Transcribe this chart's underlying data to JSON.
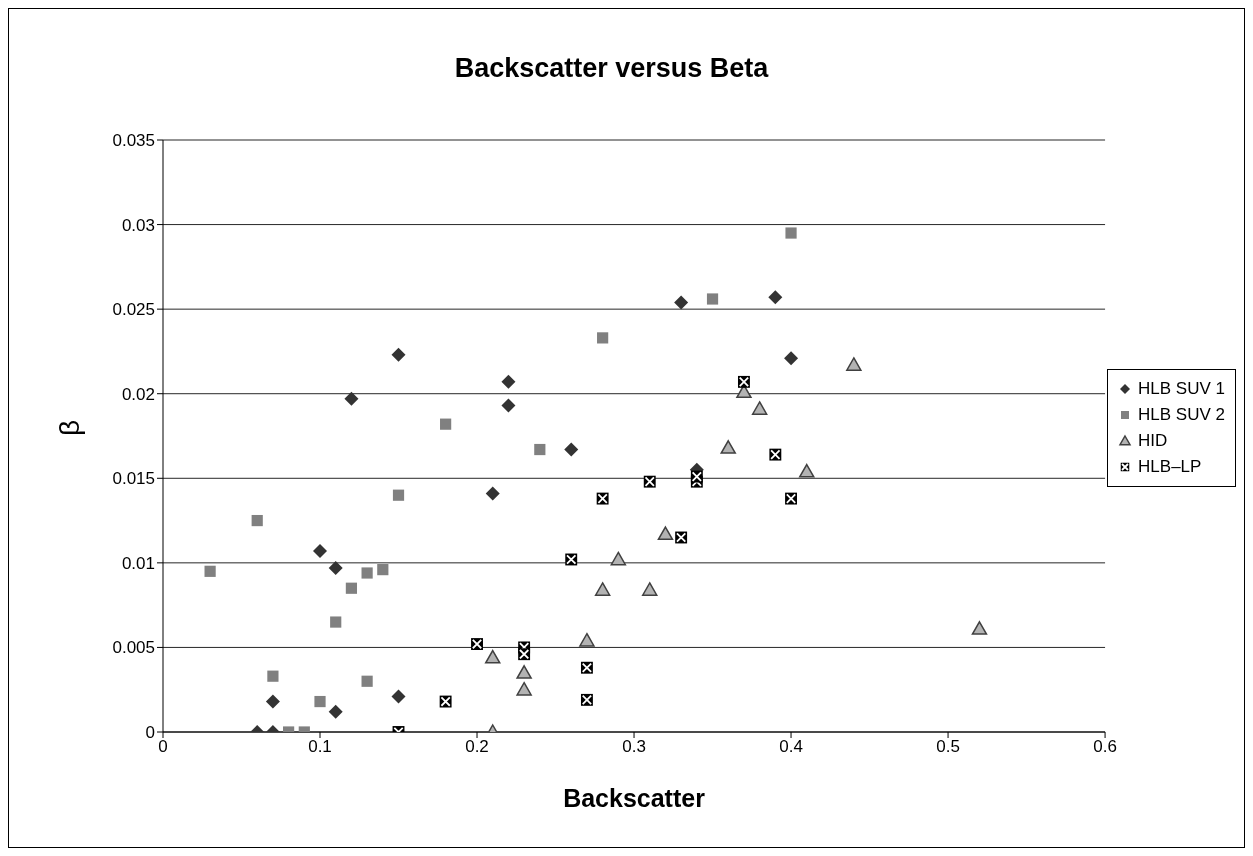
{
  "chart_data": {
    "type": "scatter",
    "title": "Backscatter versus Beta",
    "xlabel": "Backscatter",
    "ylabel": "β",
    "xlim": [
      0,
      0.6
    ],
    "xticks": [
      0,
      0.1,
      0.2,
      0.3,
      0.4,
      0.5,
      0.6
    ],
    "ylim": [
      0,
      0.035
    ],
    "yticks": [
      0,
      0.005,
      0.01,
      0.015,
      0.02,
      0.025,
      0.03,
      0.035
    ],
    "grid": "y",
    "legend": "right",
    "series": [
      {
        "name": "HLB SUV 1",
        "color": "#333333",
        "marker": "diamond",
        "x": [
          0.06,
          0.07,
          0.07,
          0.11,
          0.15,
          0.1,
          0.11,
          0.12,
          0.15,
          0.21,
          0.22,
          0.22,
          0.26,
          0.33,
          0.34,
          0.39,
          0.4
        ],
        "values": [
          0,
          0,
          0.0018,
          0.0012,
          0.0021,
          0.0107,
          0.0097,
          0.0197,
          0.0223,
          0.0141,
          0.0207,
          0.0193,
          0.0167,
          0.0254,
          0.0155,
          0.0257,
          0.0221
        ]
      },
      {
        "name": "HLB SUV 2",
        "color": "#808080",
        "marker": "square",
        "x": [
          0.03,
          0.06,
          0.07,
          0.08,
          0.09,
          0.1,
          0.11,
          0.12,
          0.13,
          0.13,
          0.14,
          0.15,
          0.18,
          0.24,
          0.28,
          0.35,
          0.4
        ],
        "values": [
          0.0095,
          0.0125,
          0.0033,
          0,
          0,
          0.0018,
          0.0065,
          0.0085,
          0.0094,
          0.003,
          0.0096,
          0.014,
          0.0182,
          0.0167,
          0.0233,
          0.0256,
          0.0295
        ]
      },
      {
        "name": "HID",
        "color": "#b3b3b3",
        "marker": "triangle",
        "x": [
          0.21,
          0.21,
          0.23,
          0.23,
          0.27,
          0.28,
          0.29,
          0.31,
          0.32,
          0.36,
          0.37,
          0.38,
          0.41,
          0.44,
          0.52
        ],
        "values": [
          0,
          0.0044,
          0.0035,
          0.0025,
          0.0054,
          0.0084,
          0.0102,
          0.0084,
          0.0117,
          0.0168,
          0.0201,
          0.0191,
          0.0154,
          0.0217,
          0.0061
        ]
      },
      {
        "name": "HLB–LP",
        "color": "#000000",
        "marker": "square",
        "x": [
          0.15,
          0.18,
          0.2,
          0.23,
          0.23,
          0.26,
          0.27,
          0.27,
          0.28,
          0.31,
          0.33,
          0.34,
          0.34,
          0.37,
          0.39,
          0.4
        ],
        "values": [
          0,
          0.0018,
          0.0052,
          0.005,
          0.0046,
          0.0102,
          0.0038,
          0.0019,
          0.0138,
          0.0148,
          0.0115,
          0.0148,
          0.0151,
          0.0207,
          0.0164,
          0.0138
        ]
      }
    ]
  }
}
